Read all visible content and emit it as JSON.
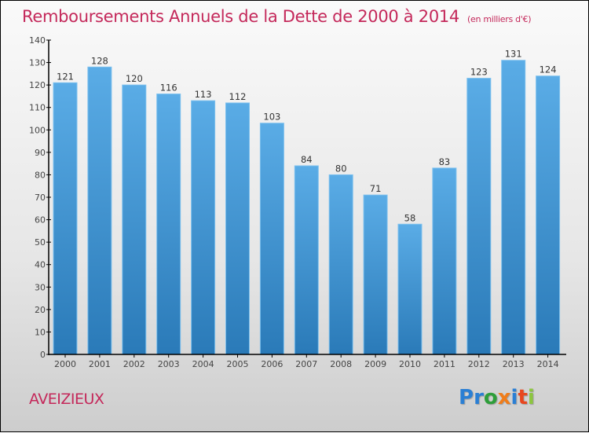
{
  "header": {
    "title": "Remboursements Annuels de la Dette de 2000 à 2014",
    "unit": "(en milliers d'€)"
  },
  "footer": {
    "city": "AVEIZIEUX",
    "logo": {
      "letters": [
        "P",
        "r",
        "o",
        "x",
        "i",
        "t",
        "i"
      ],
      "colors": [
        "#2a7fd4",
        "#2a7fd4",
        "#2e9e3a",
        "#f07d1a",
        "#2a7fd4",
        "#e8471f",
        "#8cc63f"
      ]
    }
  },
  "colors": {
    "bar_top": "#5aace6",
    "bar_bottom": "#2a7ab8",
    "title": "#c4285a"
  },
  "chart_data": {
    "type": "bar",
    "title": "Remboursements Annuels de la Dette de 2000 à 2014",
    "subtitle": "(en milliers d'€)",
    "xlabel": "",
    "ylabel": "",
    "categories": [
      "2000",
      "2001",
      "2002",
      "2003",
      "2004",
      "2005",
      "2006",
      "2007",
      "2008",
      "2009",
      "2010",
      "2011",
      "2012",
      "2013",
      "2014"
    ],
    "values": [
      121,
      128,
      120,
      116,
      113,
      112,
      103,
      84,
      80,
      71,
      58,
      83,
      123,
      131,
      124
    ],
    "ylim": [
      0,
      140
    ],
    "yticks": [
      0,
      10,
      20,
      30,
      40,
      50,
      60,
      70,
      80,
      90,
      100,
      110,
      120,
      130,
      140
    ],
    "grid": false,
    "legend": "none",
    "data_labels": true
  }
}
